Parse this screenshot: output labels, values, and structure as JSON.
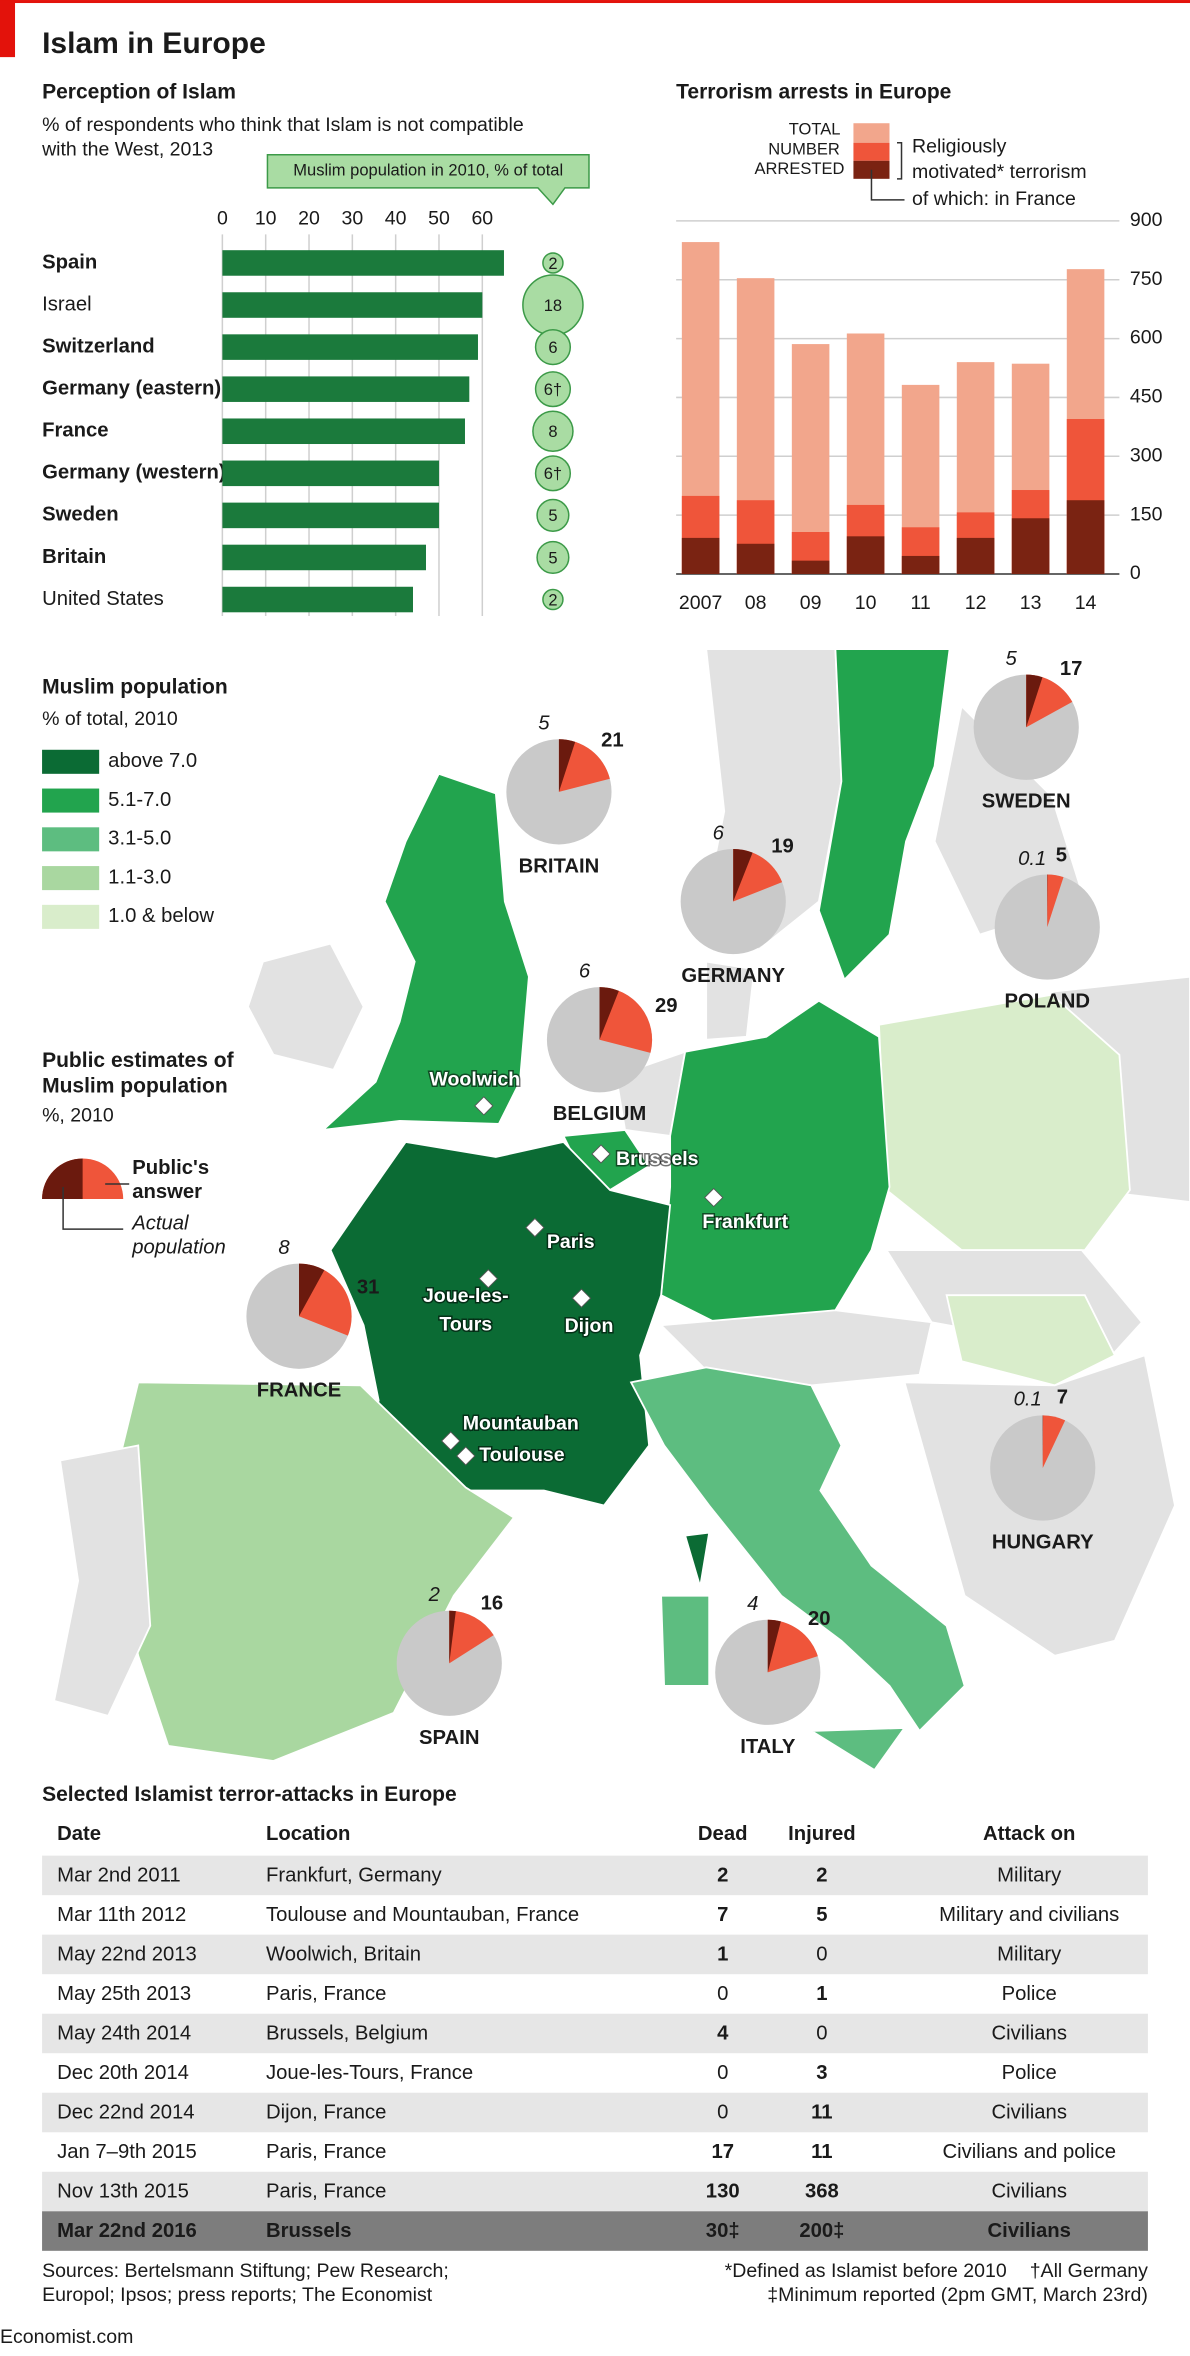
{
  "title": "Islam in Europe",
  "chart_data": [
    {
      "type": "bar",
      "orientation": "horizontal",
      "title": "Perception of Islam",
      "subtitle": "% of respondents who think that Islam is not compatible with the West, 2013",
      "categories": [
        "Spain",
        "Israel",
        "Switzerland",
        "Germany (eastern)",
        "France",
        "Germany (western)",
        "Sweden",
        "Britain",
        "United States"
      ],
      "emphasis": [
        true,
        false,
        true,
        true,
        true,
        true,
        true,
        true,
        false
      ],
      "values": [
        65,
        60,
        59,
        57,
        56,
        50,
        50,
        47,
        44
      ],
      "color": "#1b7a3c",
      "xlim": [
        0,
        60
      ],
      "xticks": [
        0,
        10,
        20,
        30,
        40,
        50,
        60
      ],
      "grid": true,
      "bubbles": {
        "name": "Muslim population in 2010, % of total",
        "color": "#a9dca3",
        "values": [
          2,
          18,
          6,
          6,
          8,
          6,
          5,
          5,
          2
        ],
        "value_labels": [
          "2",
          "18",
          "6",
          "6†",
          "8",
          "6†",
          "5",
          "5",
          "2"
        ]
      }
    },
    {
      "type": "bar",
      "title": "Terrorism arrests in Europe",
      "categories": [
        "2007",
        "08",
        "09",
        "10",
        "11",
        "12",
        "13",
        "14"
      ],
      "series": [
        {
          "name": "TOTAL NUMBER ARRESTED",
          "color": "#f2a68c",
          "values": [
            846,
            754,
            586,
            613,
            482,
            540,
            536,
            777
          ]
        },
        {
          "name": "Religiously motivated* terrorism",
          "color": "#ef553a",
          "values": [
            199,
            188,
            107,
            176,
            119,
            157,
            214,
            395
          ]
        },
        {
          "name": "of which: in France",
          "color": "#7a2312",
          "values": [
            92,
            77,
            34,
            96,
            46,
            92,
            142,
            188
          ]
        }
      ],
      "ylim": [
        0,
        900
      ],
      "yticks": [
        0,
        150,
        300,
        450,
        600,
        750,
        900
      ],
      "grid": true
    },
    {
      "type": "map",
      "title": "Muslim population",
      "subtitle": "% of total, 2010",
      "classes": [
        {
          "label": "above 7.0",
          "color": "#0b6b34"
        },
        {
          "label": "5.1-7.0",
          "color": "#22a44e"
        },
        {
          "label": "3.1-5.0",
          "color": "#5dbd80"
        },
        {
          "label": "1.1-3.0",
          "color": "#a9d7a0"
        },
        {
          "label": "1.0 & below",
          "color": "#d9edcb"
        }
      ],
      "pie_title": "Public estimates of Muslim population",
      "pie_subtitle": "%, 2010",
      "public_label": "Public's answer",
      "actual_label": "Actual population",
      "public_color": "#ef553a",
      "actual_color": "#6b1a0e",
      "rest_color": "#c9c9c9",
      "pies": [
        {
          "name": "BRITAIN",
          "actual": 5,
          "public": 21
        },
        {
          "name": "SWEDEN",
          "actual": 5,
          "public": 17
        },
        {
          "name": "GERMANY",
          "actual": 6,
          "public": 19
        },
        {
          "name": "POLAND",
          "actual": 0.1,
          "public": 5
        },
        {
          "name": "BELGIUM",
          "actual": 6,
          "public": 29
        },
        {
          "name": "FRANCE",
          "actual": 8,
          "public": 31
        },
        {
          "name": "HUNGARY",
          "actual": 0.1,
          "public": 7
        },
        {
          "name": "SPAIN",
          "actual": 2,
          "public": 16
        },
        {
          "name": "ITALY",
          "actual": 4,
          "public": 20
        }
      ],
      "cities": [
        [
          "Woolwich"
        ],
        [
          "Brussels"
        ],
        [
          "Frankfurt"
        ],
        [
          "Paris"
        ],
        [
          "Joue-les-",
          "Tours"
        ],
        [
          "Dijon"
        ],
        [
          "Mountauban"
        ],
        [
          "Toulouse"
        ]
      ]
    }
  ],
  "table": {
    "title": "Selected Islamist terror-attacks in Europe",
    "columns": [
      "Date",
      "Location",
      "Dead",
      "Injured",
      "Attack on"
    ],
    "rows": [
      [
        "Mar 2nd 2011",
        "Frankfurt, Germany",
        2,
        2,
        "Military"
      ],
      [
        "Mar 11th 2012",
        "Toulouse and Mountauban, France",
        7,
        5,
        "Military and civilians"
      ],
      [
        "May 22nd 2013",
        "Woolwich, Britain",
        1,
        0,
        "Military"
      ],
      [
        "May 25th 2013",
        "Paris, France",
        0,
        1,
        "Police"
      ],
      [
        "May 24th 2014",
        "Brussels, Belgium",
        4,
        0,
        "Civilians"
      ],
      [
        "Dec 20th 2014",
        "Joue-les-Tours, France",
        0,
        3,
        "Police"
      ],
      [
        "Dec 22nd 2014",
        "Dijon, France",
        0,
        11,
        "Civilians"
      ],
      [
        "Jan 7–9th 2015",
        "Paris, France",
        17,
        11,
        "Civilians and police"
      ],
      [
        "Nov 13th 2015",
        "Paris, France",
        130,
        368,
        "Civilians"
      ],
      [
        "Mar 22nd 2016",
        "Brussels",
        "30‡",
        "200‡",
        "Civilians"
      ]
    ]
  },
  "footer": {
    "sources": "Sources: Bertelsmann Stiftung; Pew Research; Europol; Ipsos; press reports; The Economist",
    "notes": [
      "*Defined as Islamist before 2010",
      "†All Germany",
      "‡Minimum reported (2pm GMT, March 23rd)"
    ],
    "credit": "Economist.com"
  }
}
